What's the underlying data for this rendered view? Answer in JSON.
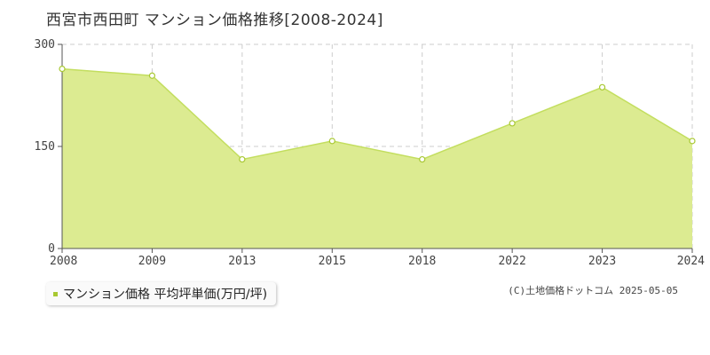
{
  "title": "西宮市西田町 マンション価格推移[2008-2024]",
  "legend_label": "マンション価格 平均坪単価(万円/坪)",
  "credit": "(C)土地価格ドットコム 2025-05-05",
  "colors": {
    "fill": "#dceb91",
    "line": "#c3de5f",
    "marker": "#a8c832",
    "grid": "#cccccc"
  },
  "chart_data": {
    "type": "area",
    "title": "西宮市西田町 マンション価格推移[2008-2024]",
    "categories": [
      "2008",
      "2009",
      "2013",
      "2015",
      "2018",
      "2022",
      "2023",
      "2024"
    ],
    "series": [
      {
        "name": "マンション価格 平均坪単価(万円/坪)",
        "values": [
          264,
          254,
          131,
          158,
          131,
          184,
          237,
          158
        ]
      }
    ],
    "yticks": [
      "0",
      "150",
      "300"
    ],
    "ylim": [
      0,
      300
    ],
    "grid": true,
    "legend_position": "bottom-left"
  }
}
